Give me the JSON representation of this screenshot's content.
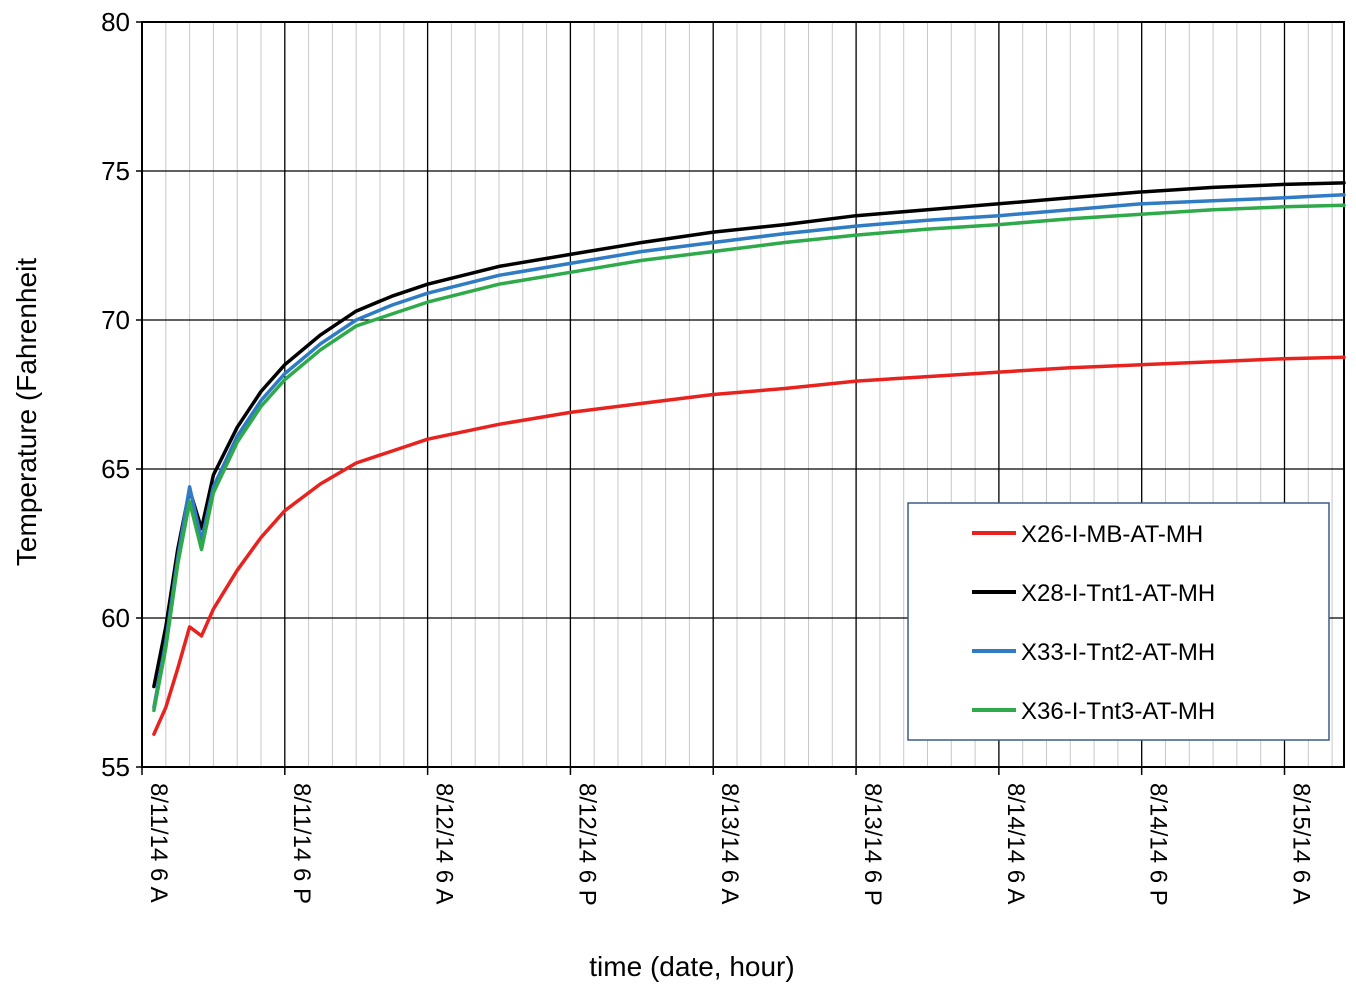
{
  "chart_data": {
    "type": "line",
    "xlabel": "time (date, hour)",
    "ylabel": "Temperature (Fahrenheit",
    "ylim": [
      55,
      80
    ],
    "yticks": [
      55,
      60,
      65,
      70,
      75,
      80
    ],
    "xlim": [
      "2014-08-11 06:00",
      "2014-08-15 11:00"
    ],
    "xticks": [
      {
        "t": "2014-08-11 06:00",
        "label": "8/11/14 6 A"
      },
      {
        "t": "2014-08-11 18:00",
        "label": "8/11/14 6 P"
      },
      {
        "t": "2014-08-12 06:00",
        "label": "8/12/14 6 A"
      },
      {
        "t": "2014-08-12 18:00",
        "label": "8/12/14 6 P"
      },
      {
        "t": "2014-08-13 06:00",
        "label": "8/13/14 6 A"
      },
      {
        "t": "2014-08-13 18:00",
        "label": "8/13/14 6 P"
      },
      {
        "t": "2014-08-14 06:00",
        "label": "8/14/14 6 A"
      },
      {
        "t": "2014-08-14 18:00",
        "label": "8/14/14 6 P"
      },
      {
        "t": "2014-08-15 06:00",
        "label": "8/15/14 6 A"
      }
    ],
    "minor_grid_hours": 2,
    "grid": true,
    "legend_position": "lower-right",
    "series": [
      {
        "name": "X26-I-MB-AT-MH",
        "color": "#e8231f",
        "points": [
          [
            "2014-08-11 07:00",
            56.1
          ],
          [
            "2014-08-11 08:00",
            57.0
          ],
          [
            "2014-08-11 09:00",
            58.3
          ],
          [
            "2014-08-11 10:00",
            59.7
          ],
          [
            "2014-08-11 11:00",
            59.4
          ],
          [
            "2014-08-11 12:00",
            60.3
          ],
          [
            "2014-08-11 14:00",
            61.6
          ],
          [
            "2014-08-11 16:00",
            62.7
          ],
          [
            "2014-08-11 18:00",
            63.6
          ],
          [
            "2014-08-11 21:00",
            64.5
          ],
          [
            "2014-08-12 00:00",
            65.2
          ],
          [
            "2014-08-12 03:00",
            65.6
          ],
          [
            "2014-08-12 06:00",
            66.0
          ],
          [
            "2014-08-12 12:00",
            66.5
          ],
          [
            "2014-08-12 18:00",
            66.9
          ],
          [
            "2014-08-13 00:00",
            67.2
          ],
          [
            "2014-08-13 06:00",
            67.5
          ],
          [
            "2014-08-13 12:00",
            67.7
          ],
          [
            "2014-08-13 18:00",
            67.95
          ],
          [
            "2014-08-14 00:00",
            68.1
          ],
          [
            "2014-08-14 06:00",
            68.25
          ],
          [
            "2014-08-14 12:00",
            68.4
          ],
          [
            "2014-08-14 18:00",
            68.5
          ],
          [
            "2014-08-15 00:00",
            68.6
          ],
          [
            "2014-08-15 06:00",
            68.7
          ],
          [
            "2014-08-15 11:00",
            68.75
          ]
        ]
      },
      {
        "name": "X28-I-Tnt1-AT-MH",
        "color": "#000000",
        "points": [
          [
            "2014-08-11 07:00",
            57.7
          ],
          [
            "2014-08-11 08:00",
            59.7
          ],
          [
            "2014-08-11 09:00",
            62.3
          ],
          [
            "2014-08-11 10:00",
            64.3
          ],
          [
            "2014-08-11 11:00",
            63.0
          ],
          [
            "2014-08-11 12:00",
            64.8
          ],
          [
            "2014-08-11 14:00",
            66.4
          ],
          [
            "2014-08-11 16:00",
            67.6
          ],
          [
            "2014-08-11 18:00",
            68.5
          ],
          [
            "2014-08-11 21:00",
            69.5
          ],
          [
            "2014-08-12 00:00",
            70.3
          ],
          [
            "2014-08-12 03:00",
            70.8
          ],
          [
            "2014-08-12 06:00",
            71.2
          ],
          [
            "2014-08-12 12:00",
            71.8
          ],
          [
            "2014-08-12 18:00",
            72.2
          ],
          [
            "2014-08-13 00:00",
            72.6
          ],
          [
            "2014-08-13 06:00",
            72.95
          ],
          [
            "2014-08-13 12:00",
            73.2
          ],
          [
            "2014-08-13 18:00",
            73.5
          ],
          [
            "2014-08-14 00:00",
            73.7
          ],
          [
            "2014-08-14 06:00",
            73.9
          ],
          [
            "2014-08-14 12:00",
            74.1
          ],
          [
            "2014-08-14 18:00",
            74.3
          ],
          [
            "2014-08-15 00:00",
            74.45
          ],
          [
            "2014-08-15 06:00",
            74.55
          ],
          [
            "2014-08-15 11:00",
            74.6
          ]
        ]
      },
      {
        "name": "X33-I-Tnt2-AT-MH",
        "color": "#2f7bc4",
        "points": [
          [
            "2014-08-11 07:00",
            57.0
          ],
          [
            "2014-08-11 08:00",
            59.2
          ],
          [
            "2014-08-11 09:00",
            62.0
          ],
          [
            "2014-08-11 10:00",
            64.4
          ],
          [
            "2014-08-11 11:00",
            62.6
          ],
          [
            "2014-08-11 12:00",
            64.4
          ],
          [
            "2014-08-11 14:00",
            66.1
          ],
          [
            "2014-08-11 16:00",
            67.3
          ],
          [
            "2014-08-11 18:00",
            68.2
          ],
          [
            "2014-08-11 21:00",
            69.2
          ],
          [
            "2014-08-12 00:00",
            70.0
          ],
          [
            "2014-08-12 03:00",
            70.5
          ],
          [
            "2014-08-12 06:00",
            70.9
          ],
          [
            "2014-08-12 12:00",
            71.5
          ],
          [
            "2014-08-12 18:00",
            71.9
          ],
          [
            "2014-08-13 00:00",
            72.3
          ],
          [
            "2014-08-13 06:00",
            72.6
          ],
          [
            "2014-08-13 12:00",
            72.9
          ],
          [
            "2014-08-13 18:00",
            73.15
          ],
          [
            "2014-08-14 00:00",
            73.35
          ],
          [
            "2014-08-14 06:00",
            73.5
          ],
          [
            "2014-08-14 12:00",
            73.7
          ],
          [
            "2014-08-14 18:00",
            73.9
          ],
          [
            "2014-08-15 00:00",
            74.0
          ],
          [
            "2014-08-15 06:00",
            74.1
          ],
          [
            "2014-08-15 11:00",
            74.2
          ]
        ]
      },
      {
        "name": "X36-I-Tnt3-AT-MH",
        "color": "#2eaa4a",
        "points": [
          [
            "2014-08-11 07:00",
            56.9
          ],
          [
            "2014-08-11 08:00",
            59.0
          ],
          [
            "2014-08-11 09:00",
            61.8
          ],
          [
            "2014-08-11 10:00",
            63.9
          ],
          [
            "2014-08-11 11:00",
            62.3
          ],
          [
            "2014-08-11 12:00",
            64.2
          ],
          [
            "2014-08-11 14:00",
            65.9
          ],
          [
            "2014-08-11 16:00",
            67.1
          ],
          [
            "2014-08-11 18:00",
            68.0
          ],
          [
            "2014-08-11 21:00",
            69.0
          ],
          [
            "2014-08-12 00:00",
            69.8
          ],
          [
            "2014-08-12 03:00",
            70.2
          ],
          [
            "2014-08-12 06:00",
            70.6
          ],
          [
            "2014-08-12 12:00",
            71.2
          ],
          [
            "2014-08-12 18:00",
            71.6
          ],
          [
            "2014-08-13 00:00",
            72.0
          ],
          [
            "2014-08-13 06:00",
            72.3
          ],
          [
            "2014-08-13 12:00",
            72.6
          ],
          [
            "2014-08-13 18:00",
            72.85
          ],
          [
            "2014-08-14 00:00",
            73.05
          ],
          [
            "2014-08-14 06:00",
            73.2
          ],
          [
            "2014-08-14 12:00",
            73.4
          ],
          [
            "2014-08-14 18:00",
            73.55
          ],
          [
            "2014-08-15 00:00",
            73.7
          ],
          [
            "2014-08-15 06:00",
            73.8
          ],
          [
            "2014-08-15 11:00",
            73.85
          ]
        ]
      }
    ]
  }
}
